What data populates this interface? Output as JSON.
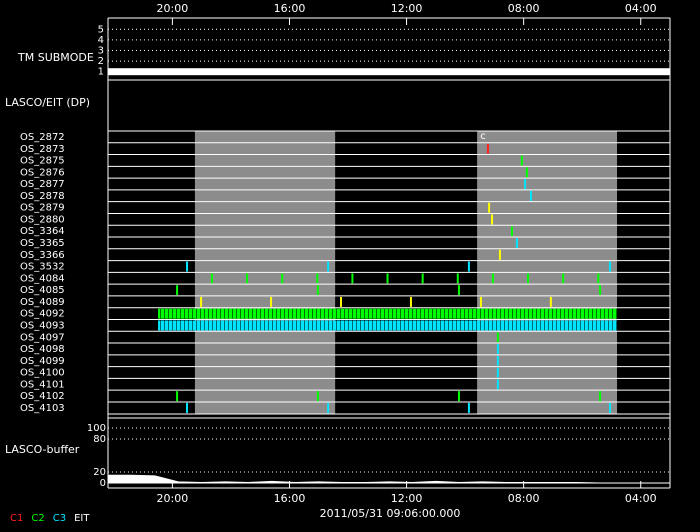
{
  "chart_data": {
    "type": "timeline",
    "xlim": [
      22.2,
      3.0
    ],
    "xticks": [
      {
        "value": 20,
        "label": "20:00"
      },
      {
        "value": 16,
        "label": "16:00"
      },
      {
        "value": 12,
        "label": "12:00"
      },
      {
        "value": 8,
        "label": "08:00"
      },
      {
        "value": 4,
        "label": "04:00"
      }
    ],
    "date_label": "2011/05/31 09:06:00.000",
    "submode": {
      "label": "TM SUBMODE",
      "ylim": [
        0.5,
        5.5
      ],
      "yticks": [
        1,
        2,
        3,
        4,
        5
      ],
      "mode": {
        "value": 1,
        "start": 22.2,
        "end": 3.0,
        "color": "#ffffff"
      }
    },
    "dp_label": "LASCO/EIT (DP)",
    "rows": [
      "OS_2872",
      "OS_2873",
      "OS_2875",
      "OS_2876",
      "OS_2877",
      "OS_2878",
      "OS_2879",
      "OS_2880",
      "OS_3364",
      "OS_3365",
      "OS_3366",
      "OS_3532",
      "OS_4084",
      "OS_4085",
      "OS_4089",
      "OS_4092",
      "OS_4093",
      "OS_4097",
      "OS_4098",
      "OS_4099",
      "OS_4100",
      "OS_4101",
      "OS_4102",
      "OS_4103"
    ],
    "shaded": [
      {
        "start": 19.23,
        "end": 14.44
      },
      {
        "start": 9.59,
        "end": 4.81
      }
    ],
    "annotations": [
      {
        "row": 0,
        "x": 9.39,
        "label": "c"
      }
    ],
    "bands": [
      {
        "row": 15,
        "start": 20.49,
        "end": 4.81,
        "color": "#00ff00"
      },
      {
        "row": 16,
        "start": 20.49,
        "end": 4.81,
        "color": "#00e5ff"
      }
    ],
    "events": [
      {
        "row": 1,
        "color": "#ff2020",
        "x": [
          9.22
        ]
      },
      {
        "row": 2,
        "color": "#00ff00",
        "x": [
          8.06
        ]
      },
      {
        "row": 3,
        "color": "#00ff00",
        "x": [
          7.89
        ]
      },
      {
        "row": 4,
        "color": "#00e5ff",
        "x": [
          7.95
        ]
      },
      {
        "row": 5,
        "color": "#00e5ff",
        "x": [
          7.75
        ]
      },
      {
        "row": 6,
        "color": "#ffff00",
        "x": [
          9.18
        ]
      },
      {
        "row": 7,
        "color": "#ffff00",
        "x": [
          9.08
        ]
      },
      {
        "row": 8,
        "color": "#00ff00",
        "x": [
          8.4
        ]
      },
      {
        "row": 9,
        "color": "#00e5ff",
        "x": [
          8.23
        ]
      },
      {
        "row": 10,
        "color": "#ffff00",
        "x": [
          8.81
        ]
      },
      {
        "row": 11,
        "color": "#00e5ff",
        "x": [
          19.5,
          14.68,
          9.87,
          5.05
        ]
      },
      {
        "row": 12,
        "color": "#00ff00",
        "x": [
          18.65,
          17.45,
          16.25,
          15.05,
          13.85,
          12.65,
          11.45,
          10.25,
          9.05,
          7.85,
          6.65,
          5.45
        ]
      },
      {
        "row": 13,
        "color": "#00ff00",
        "x": [
          19.84,
          15.03,
          10.21,
          5.39
        ]
      },
      {
        "row": 14,
        "color": "#ffff00",
        "x": [
          19.02,
          16.63,
          14.24,
          11.85,
          9.46,
          7.07
        ]
      },
      {
        "row": 17,
        "color": "#00ff00",
        "x": [
          8.88
        ]
      },
      {
        "row": 18,
        "color": "#00e5ff",
        "x": [
          8.88
        ]
      },
      {
        "row": 19,
        "color": "#00e5ff",
        "x": [
          8.88
        ]
      },
      {
        "row": 20,
        "color": "#00e5ff",
        "x": [
          8.88
        ]
      },
      {
        "row": 21,
        "color": "#00e5ff",
        "x": [
          8.88
        ]
      },
      {
        "row": 22,
        "color": "#00ff00",
        "x": [
          19.84,
          15.03,
          10.21,
          5.39
        ]
      },
      {
        "row": 23,
        "color": "#00e5ff",
        "x": [
          19.5,
          14.68,
          9.87,
          5.05
        ]
      }
    ],
    "buffer": {
      "label": "LASCO-buffer",
      "ylim": [
        0,
        100
      ],
      "yticks": [
        0,
        20,
        80,
        100
      ],
      "color": "#ffffff",
      "x": [
        22.2,
        21.4,
        20.6,
        19.8,
        19.0,
        18.2,
        17.4,
        16.6,
        15.8,
        15.0,
        14.2,
        13.4,
        12.6,
        11.8,
        11.0,
        10.2,
        9.4,
        8.6,
        7.8,
        7.0,
        6.2,
        5.4,
        4.6,
        3.8,
        3.0
      ],
      "values": [
        14,
        14,
        13,
        2,
        1,
        2,
        1,
        3,
        1,
        2,
        1,
        1,
        2,
        1,
        3,
        1,
        2,
        1,
        1,
        1,
        1,
        0,
        0,
        0,
        0
      ]
    },
    "legend": [
      {
        "name": "C1",
        "color": "#ff2020"
      },
      {
        "name": "C2",
        "color": "#00ff00"
      },
      {
        "name": "C3",
        "color": "#00e5ff"
      },
      {
        "name": "EIT",
        "color": "#ffffff"
      }
    ]
  }
}
